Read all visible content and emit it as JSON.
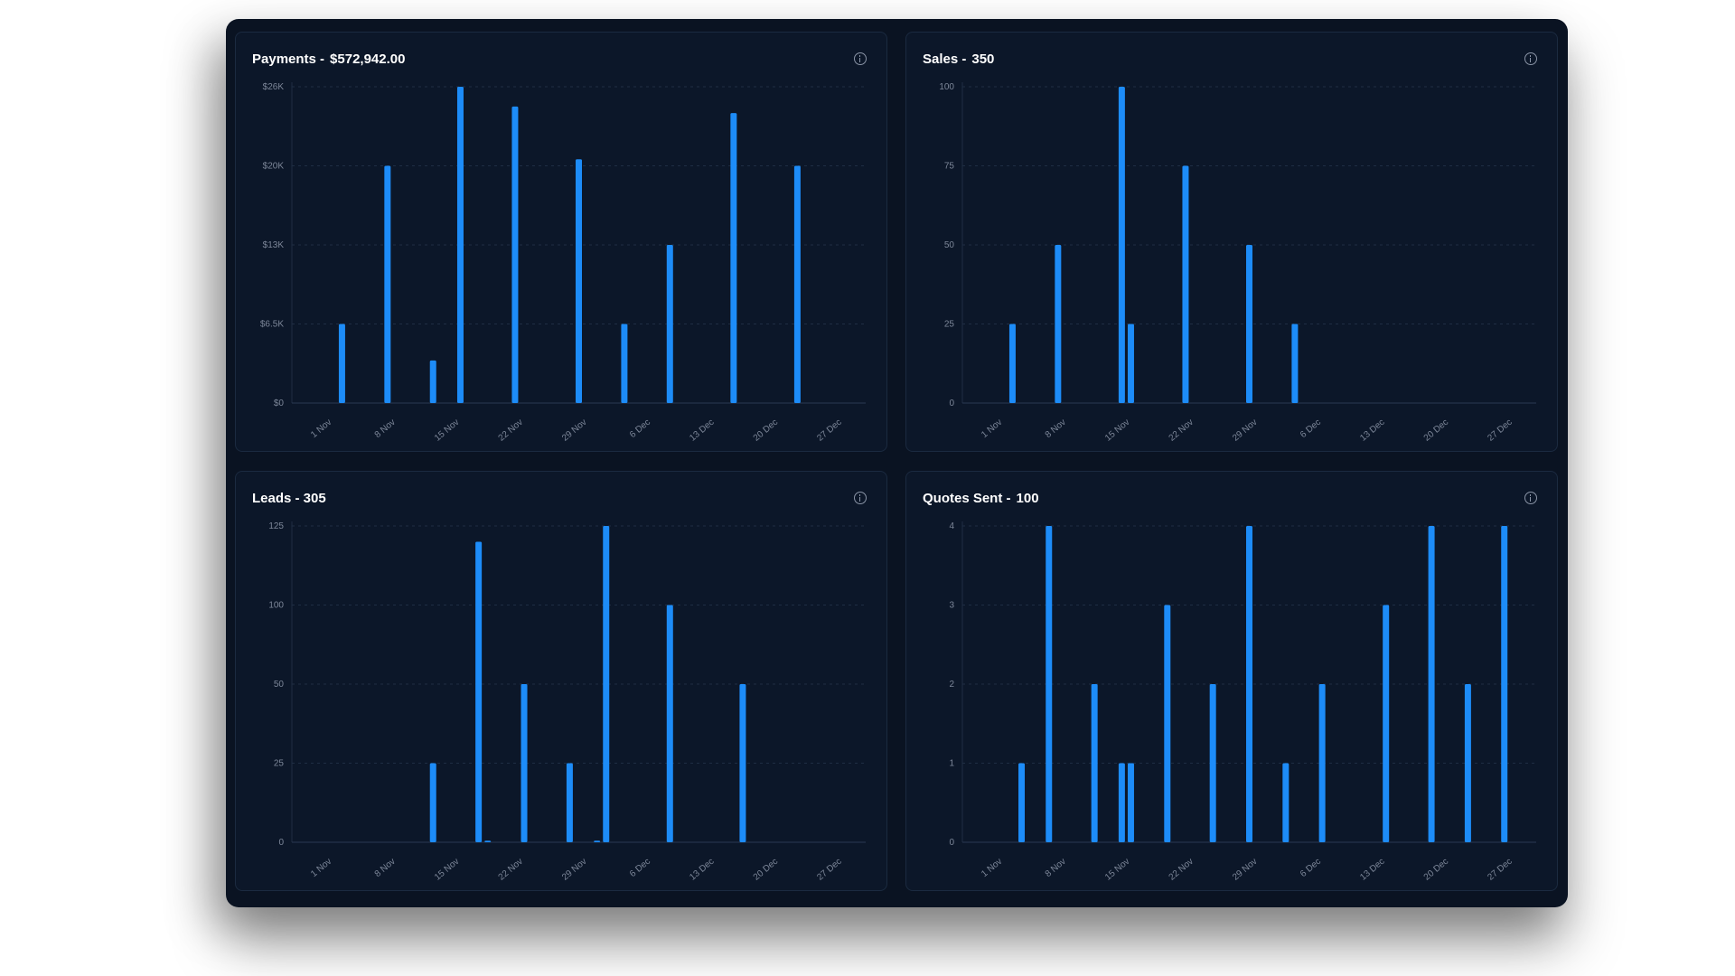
{
  "colors": {
    "bar": "#1d8cf8",
    "panel": "#0c1729",
    "frame": "#0a1322",
    "grid": "#1f2e44",
    "tick": "#7d8799"
  },
  "icons": [
    "info-icon"
  ],
  "cards": [
    {
      "title": "Payments -",
      "value": "$572,942.00"
    },
    {
      "title": "Sales -",
      "value": "350"
    },
    {
      "title": "Leads - 305",
      "value": ""
    },
    {
      "title": "Quotes Sent -",
      "value": "100"
    }
  ],
  "chart_data": [
    {
      "type": "bar",
      "x_range": [
        "2023-10-28",
        "2023-12-30"
      ],
      "x_ticks": [
        "1 Nov",
        "8 Nov",
        "15 Nov",
        "22 Nov",
        "29 Nov",
        "6 Dec",
        "13 Dec",
        "20 Dec",
        "27 Dec"
      ],
      "y_ticks": [
        0,
        6500,
        13000,
        20000,
        26000
      ],
      "y_tick_labels": [
        "$0",
        "$6.5K",
        "$13K",
        "$20K",
        "$26K"
      ],
      "grid": true,
      "points": [
        {
          "x": "2023-11-02",
          "y": 6500
        },
        {
          "x": "2023-11-07",
          "y": 20000
        },
        {
          "x": "2023-11-12",
          "y": 3500
        },
        {
          "x": "2023-11-15",
          "y": 26000
        },
        {
          "x": "2023-11-21",
          "y": 24500
        },
        {
          "x": "2023-11-28",
          "y": 20500
        },
        {
          "x": "2023-12-03",
          "y": 6500
        },
        {
          "x": "2023-12-08",
          "y": 13000
        },
        {
          "x": "2023-12-15",
          "y": 24000
        },
        {
          "x": "2023-12-22",
          "y": 20000
        }
      ]
    },
    {
      "type": "bar",
      "x_range": [
        "2023-10-28",
        "2023-12-30"
      ],
      "x_ticks": [
        "1 Nov",
        "8 Nov",
        "15 Nov",
        "22 Nov",
        "29 Nov",
        "6 Dec",
        "13 Dec",
        "20 Dec",
        "27 Dec"
      ],
      "y_ticks": [
        0,
        25,
        50,
        75,
        100
      ],
      "y_tick_labels": [
        "0",
        "25",
        "50",
        "75",
        "100"
      ],
      "grid": true,
      "points": [
        {
          "x": "2023-11-02",
          "y": 25
        },
        {
          "x": "2023-11-07",
          "y": 50
        },
        {
          "x": "2023-11-14",
          "y": 100
        },
        {
          "x": "2023-11-15",
          "y": 25
        },
        {
          "x": "2023-11-21",
          "y": 75
        },
        {
          "x": "2023-11-28",
          "y": 50
        },
        {
          "x": "2023-12-03",
          "y": 25
        }
      ]
    },
    {
      "type": "bar",
      "x_range": [
        "2023-10-28",
        "2023-12-30"
      ],
      "x_ticks": [
        "1 Nov",
        "8 Nov",
        "15 Nov",
        "22 Nov",
        "29 Nov",
        "6 Dec",
        "13 Dec",
        "20 Dec",
        "27 Dec"
      ],
      "y_ticks": [
        0,
        25,
        50,
        100,
        125
      ],
      "y_tick_labels": [
        "0",
        "25",
        "50",
        "100",
        "125"
      ],
      "grid": true,
      "points": [
        {
          "x": "2023-11-12",
          "y": 25
        },
        {
          "x": "2023-11-17",
          "y": 120
        },
        {
          "x": "2023-11-18",
          "y": 0.5
        },
        {
          "x": "2023-11-22",
          "y": 50
        },
        {
          "x": "2023-11-27",
          "y": 25
        },
        {
          "x": "2023-11-30",
          "y": 0.5
        },
        {
          "x": "2023-12-01",
          "y": 125
        },
        {
          "x": "2023-12-08",
          "y": 100
        },
        {
          "x": "2023-12-16",
          "y": 50
        }
      ]
    },
    {
      "type": "bar",
      "x_range": [
        "2023-10-28",
        "2023-12-30"
      ],
      "x_ticks": [
        "1 Nov",
        "8 Nov",
        "15 Nov",
        "22 Nov",
        "29 Nov",
        "6 Dec",
        "13 Dec",
        "20 Dec",
        "27 Dec"
      ],
      "y_ticks": [
        0,
        1,
        2,
        3,
        4
      ],
      "y_tick_labels": [
        "0",
        "1",
        "2",
        "3",
        "4"
      ],
      "grid": true,
      "points": [
        {
          "x": "2023-11-03",
          "y": 1
        },
        {
          "x": "2023-11-06",
          "y": 4
        },
        {
          "x": "2023-11-11",
          "y": 2
        },
        {
          "x": "2023-11-14",
          "y": 1
        },
        {
          "x": "2023-11-15",
          "y": 1
        },
        {
          "x": "2023-11-19",
          "y": 3
        },
        {
          "x": "2023-11-24",
          "y": 2
        },
        {
          "x": "2023-11-28",
          "y": 4
        },
        {
          "x": "2023-12-02",
          "y": 1
        },
        {
          "x": "2023-12-06",
          "y": 2
        },
        {
          "x": "2023-12-13",
          "y": 3
        },
        {
          "x": "2023-12-18",
          "y": 4
        },
        {
          "x": "2023-12-22",
          "y": 2
        },
        {
          "x": "2023-12-26",
          "y": 4
        }
      ]
    }
  ]
}
